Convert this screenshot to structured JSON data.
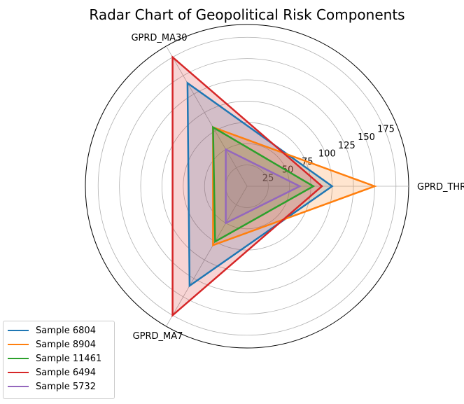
{
  "title": "Radar Chart of Geopolitical Risk Components",
  "chart_data": {
    "type": "radar",
    "title": "Radar Chart of Geopolitical Risk Components",
    "axes": [
      "GPRD_THREAT",
      "GPRD_MA30",
      "GPRD_MA7"
    ],
    "rlim": [
      0,
      190
    ],
    "r_ticks": [
      25,
      50,
      75,
      100,
      125,
      150,
      175
    ],
    "grid": true,
    "legend_position": "lower-left",
    "series": [
      {
        "name": "Sample 6804",
        "color": "#1f77b4",
        "values": [
          100,
          140,
          135
        ]
      },
      {
        "name": "Sample 8904",
        "color": "#ff7f0e",
        "values": [
          150,
          80,
          80
        ]
      },
      {
        "name": "Sample 11461",
        "color": "#2ca02c",
        "values": [
          78,
          80,
          75
        ]
      },
      {
        "name": "Sample 6494",
        "color": "#d62728",
        "values": [
          88,
          175,
          175
        ]
      },
      {
        "name": "Sample 5732",
        "color": "#9467bd",
        "values": [
          62,
          50,
          50
        ]
      }
    ]
  }
}
